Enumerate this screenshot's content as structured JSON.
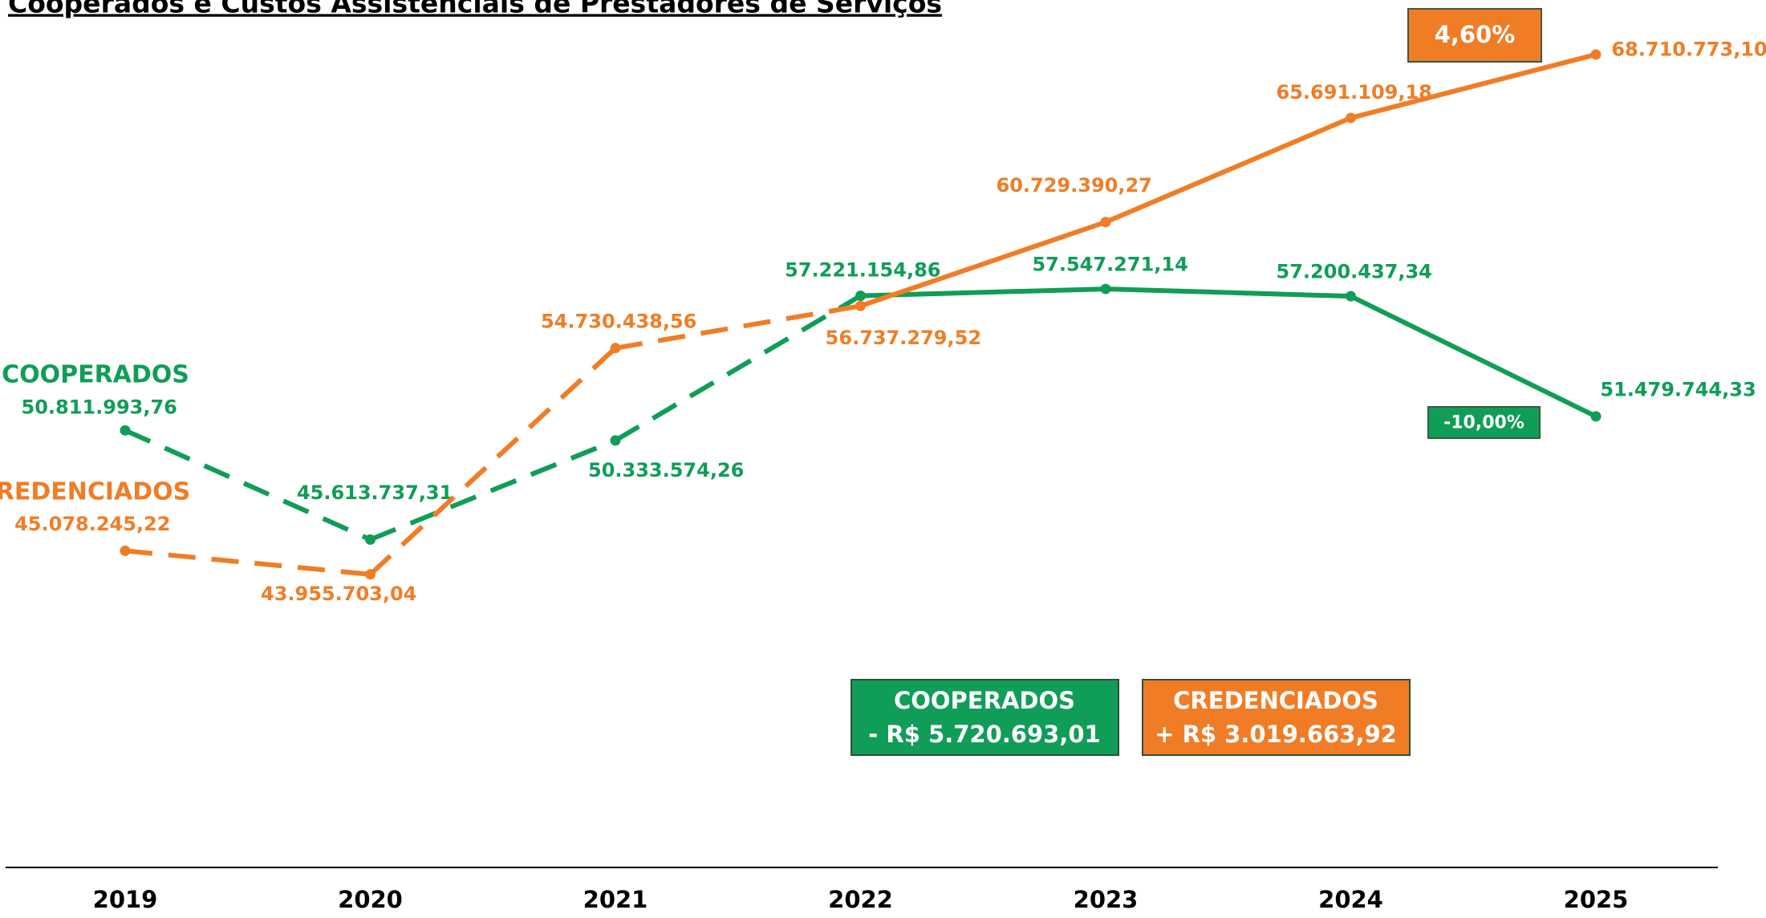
{
  "chart_data": {
    "type": "line",
    "title": "Cooperados e Custos Assistenciais de Prestadores de Serviços",
    "categories": [
      "2019",
      "2020",
      "2021",
      "2022",
      "2023",
      "2024",
      "2025"
    ],
    "series": [
      {
        "name": "COOPERADOS",
        "color": "#109d58",
        "values": [
          50811993.76,
          45613737.31,
          50333574.26,
          57221154.86,
          57547271.14,
          57200437.34,
          51479744.33
        ],
        "value_labels": [
          "50.811.993,76",
          "45.613.737,31",
          "50.333.574,26",
          "57.221.154,86",
          "57.547.271,14",
          "57.200.437,34",
          "51.479.744,33"
        ],
        "line_style": [
          "dashed",
          "dashed",
          "dashed",
          "solid",
          "solid",
          "solid"
        ]
      },
      {
        "name": "CREDENCIADOS",
        "color": "#f07d26",
        "values": [
          45078245.22,
          43955703.04,
          54730438.56,
          56737279.52,
          60729390.27,
          65691109.18,
          68710773.1
        ],
        "value_labels": [
          "45.078.245,22",
          "43.955.703,04",
          "54.730.438,56",
          "56.737.279,52",
          "60.729.390,27",
          "65.691.109,18",
          "68.710.773,10"
        ],
        "line_style": [
          "dashed",
          "dashed",
          "dashed",
          "solid",
          "solid",
          "solid"
        ]
      }
    ],
    "ylim": [
      30000000,
      71000000
    ],
    "annotations": [
      "-10,00%",
      "4,60%"
    ],
    "summary": [
      {
        "title": "COOPERADOS",
        "text": "- R$ 5.720.693,01"
      },
      {
        "title": "CREDENCIADOS",
        "text": "+ R$ 3.019.663,92"
      }
    ]
  }
}
